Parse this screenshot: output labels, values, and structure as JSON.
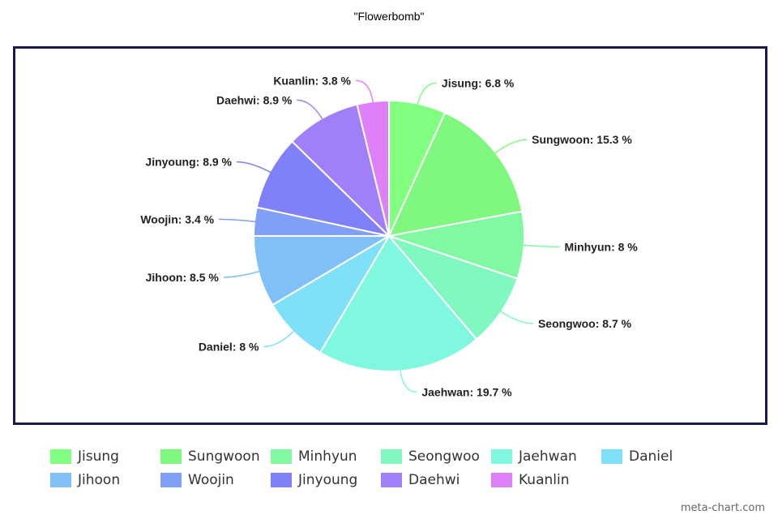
{
  "chart_data": {
    "type": "pie",
    "title": "\"Flowerbomb\"",
    "slices": [
      {
        "name": "Jisung",
        "value": 6.8,
        "label": "Jisung: 6.8 %",
        "color": "#80ff80"
      },
      {
        "name": "Sungwoon",
        "value": 15.3,
        "label": "Sungwoon: 15.3 %",
        "color": "#80f87f"
      },
      {
        "name": "Minhyun",
        "value": 8,
        "label": "Minhyun: 8 %",
        "color": "#80f9a0"
      },
      {
        "name": "Seongwoo",
        "value": 8.7,
        "label": "Seongwoo: 8.7 %",
        "color": "#80f8c0"
      },
      {
        "name": "Jaehwan",
        "value": 19.7,
        "label": "Jaehwan: 19.7 %",
        "color": "#80f8e0"
      },
      {
        "name": "Daniel",
        "value": 8,
        "label": "Daniel: 8 %",
        "color": "#80e0f8"
      },
      {
        "name": "Jihoon",
        "value": 8.5,
        "label": "Jihoon: 8.5 %",
        "color": "#80c0f8"
      },
      {
        "name": "Woojin",
        "value": 3.4,
        "label": "Woojin: 3.4 %",
        "color": "#80a0f8"
      },
      {
        "name": "Jinyoung",
        "value": 8.9,
        "label": "Jinyoung: 8.9 %",
        "color": "#8080f8"
      },
      {
        "name": "Daehwi",
        "value": 8.9,
        "label": "Daehwi: 8.9 %",
        "color": "#a080f8"
      },
      {
        "name": "Kuanlin",
        "value": 3.8,
        "label": "Kuanlin: 3.8 %",
        "color": "#e080f8"
      }
    ],
    "legend_position": "bottom"
  },
  "legend": [
    {
      "label": "Jisung",
      "color": "#80ff80"
    },
    {
      "label": "Sungwoon",
      "color": "#80f87f"
    },
    {
      "label": "Minhyun",
      "color": "#80f9a0"
    },
    {
      "label": "Seongwoo",
      "color": "#80f8c0"
    },
    {
      "label": "Jaehwan",
      "color": "#80f8e0"
    },
    {
      "label": "Daniel",
      "color": "#80e0f8"
    },
    {
      "label": "Jihoon",
      "color": "#80c0f8"
    },
    {
      "label": "Woojin",
      "color": "#80a0f8"
    },
    {
      "label": "Jinyoung",
      "color": "#8080f8"
    },
    {
      "label": "Daehwi",
      "color": "#a080f8"
    },
    {
      "label": "Kuanlin",
      "color": "#e080f8"
    }
  ],
  "watermark": "meta-chart.com"
}
